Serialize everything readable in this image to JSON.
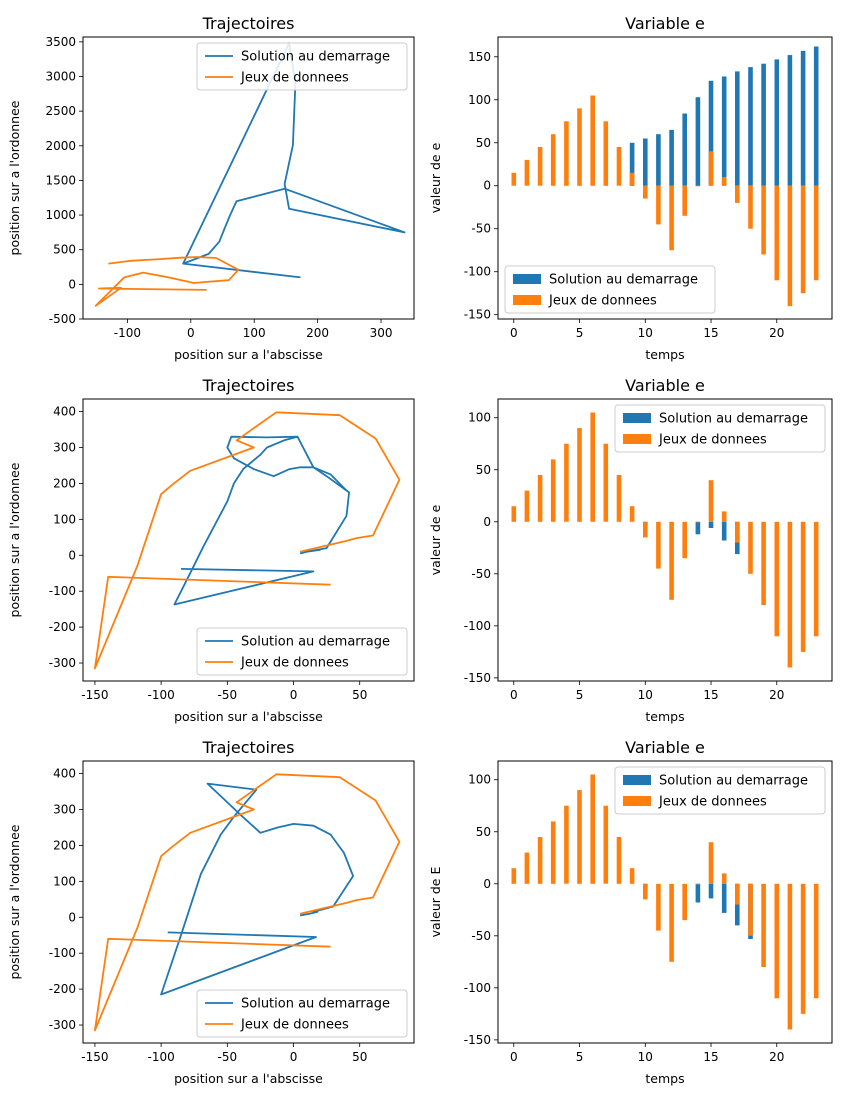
{
  "colors": {
    "blue": "#1f77b4",
    "orange": "#ff7f0e"
  },
  "chart_data": [
    {
      "type": "line",
      "title": "Trajectoires",
      "xlabel": "position sur a l'abscisse",
      "ylabel": "position sur a l'ordonnee",
      "xlim": [
        -170,
        352
      ],
      "ylim": [
        -500,
        3570
      ],
      "xticks": [
        -100,
        0,
        100,
        200,
        300
      ],
      "yticks": [
        -500,
        0,
        500,
        1000,
        1500,
        2000,
        2500,
        3000,
        3500
      ],
      "legend": "top-right",
      "series": [
        {
          "name": "Solution au demarrage",
          "color": "blue",
          "x": [
            173,
            -12,
            28,
            45,
            53,
            62,
            72,
            148,
            337,
            155,
            148,
            161,
            165,
            155,
            -12
          ],
          "y": [
            100,
            300,
            440,
            615,
            800,
            1000,
            1200,
            1380,
            750,
            1090,
            1450,
            2010,
            2900,
            3480,
            300
          ]
        },
        {
          "name": "Jeux de donnees",
          "color": "orange",
          "x": [
            -130,
            -95,
            -55,
            -15,
            10,
            40,
            75,
            60,
            30,
            5,
            -35,
            -75,
            -105,
            -150,
            -110,
            -145,
            25
          ],
          "y": [
            300,
            340,
            360,
            385,
            395,
            380,
            210,
            60,
            40,
            20,
            100,
            170,
            100,
            -310,
            -50,
            -60,
            -80
          ]
        }
      ]
    },
    {
      "type": "bar",
      "title": "Variable e",
      "xlabel": "temps",
      "ylabel": "valeur de e",
      "xlim": [
        -1.2,
        24.2
      ],
      "ylim": [
        -155,
        173
      ],
      "xticks": [
        0,
        5,
        10,
        15,
        20
      ],
      "yticks": [
        -150,
        -100,
        -50,
        0,
        50,
        100,
        150
      ],
      "legend": "bottom-left",
      "x": [
        0,
        1,
        2,
        3,
        4,
        5,
        6,
        7,
        8,
        9,
        10,
        11,
        12,
        13,
        14,
        15,
        16,
        17,
        18,
        19,
        20,
        21,
        22,
        23
      ],
      "series": [
        {
          "name": "Solution au demarrage",
          "color": "blue",
          "values": [
            null,
            null,
            null,
            null,
            null,
            null,
            null,
            null,
            null,
            50,
            55,
            60,
            65,
            84,
            103,
            122,
            127,
            133,
            138,
            142,
            147,
            152,
            157,
            162
          ]
        },
        {
          "name": "Jeux de donnees",
          "color": "orange",
          "values": [
            15,
            30,
            45,
            60,
            75,
            90,
            105,
            75,
            45,
            15,
            -15,
            -45,
            -75,
            -35,
            0,
            40,
            10,
            -20,
            -50,
            -80,
            -110,
            -140,
            -125,
            -110
          ]
        }
      ]
    },
    {
      "type": "line",
      "title": "Trajectoires",
      "xlabel": "position sur a l'abscisse",
      "ylabel": "position sur a l'ordonnee",
      "xlim": [
        -159,
        91
      ],
      "ylim": [
        -350,
        435
      ],
      "xticks": [
        -150,
        -100,
        -50,
        0,
        50
      ],
      "yticks": [
        -300,
        -200,
        -100,
        0,
        100,
        200,
        300,
        400
      ],
      "legend": "bottom-right",
      "series": [
        {
          "name": "Solution au demarrage",
          "color": "blue",
          "x": [
            -85,
            15,
            -90,
            -78,
            -68,
            -50,
            -45,
            -38,
            -25,
            -20,
            -7,
            3,
            15,
            25,
            42,
            40,
            25,
            10,
            20,
            10,
            5
          ],
          "y": [
            -38,
            -45,
            -137,
            -50,
            25,
            150,
            200,
            240,
            280,
            300,
            320,
            330,
            245,
            220,
            175,
            110,
            20,
            10,
            15,
            10,
            5
          ],
          "x_tail": [
            3,
            -20,
            -47,
            -50,
            -45,
            -30,
            -15,
            -3,
            5,
            15,
            28,
            40
          ],
          "y_tail": [
            330,
            328,
            330,
            300,
            270,
            240,
            220,
            240,
            245,
            245,
            225,
            180
          ]
        },
        {
          "name": "Jeux de donnees",
          "color": "orange",
          "x": [
            5,
            40,
            48,
            60,
            80,
            62,
            35,
            -13,
            -43,
            -30,
            -78,
            -92,
            -100,
            -118,
            -150,
            -140,
            28
          ],
          "y": [
            10,
            40,
            48,
            55,
            210,
            325,
            390,
            398,
            320,
            300,
            235,
            195,
            170,
            -30,
            -315,
            -60,
            -82
          ]
        }
      ]
    },
    {
      "type": "bar",
      "title": "Variable e",
      "xlabel": "temps",
      "ylabel": "valeur de e",
      "xlim": [
        -1.2,
        24.2
      ],
      "ylim": [
        -153,
        118
      ],
      "xticks": [
        0,
        5,
        10,
        15,
        20
      ],
      "yticks": [
        -150,
        -100,
        -50,
        0,
        50,
        100
      ],
      "legend": "top-right",
      "x": [
        0,
        1,
        2,
        3,
        4,
        5,
        6,
        7,
        8,
        9,
        10,
        11,
        12,
        13,
        14,
        15,
        16,
        17,
        18,
        19,
        20,
        21,
        22,
        23
      ],
      "series": [
        {
          "name": "Solution au demarrage",
          "color": "blue",
          "values": [
            null,
            null,
            null,
            null,
            null,
            null,
            null,
            null,
            null,
            null,
            -5,
            null,
            null,
            null,
            -12,
            -6,
            -18,
            -31,
            null,
            null,
            null,
            null,
            null,
            null
          ]
        },
        {
          "name": "Jeux de donnees",
          "color": "orange",
          "values": [
            15,
            30,
            45,
            60,
            75,
            90,
            105,
            75,
            45,
            15,
            -15,
            -45,
            -75,
            -35,
            0,
            40,
            10,
            -20,
            -50,
            -80,
            -110,
            -140,
            -125,
            -110
          ]
        }
      ]
    },
    {
      "type": "line",
      "title": "Trajectoires",
      "xlabel": "position sur a l'abscisse",
      "ylabel": "position sur a l'ordonnee",
      "xlim": [
        -159,
        91
      ],
      "ylim": [
        -350,
        435
      ],
      "xticks": [
        -150,
        -100,
        -50,
        0,
        50
      ],
      "yticks": [
        -300,
        -200,
        -100,
        0,
        100,
        200,
        300,
        400
      ],
      "legend": "bottom-right",
      "series": [
        {
          "name": "Solution au demarrage",
          "color": "blue",
          "x": [
            -95,
            17,
            -100,
            -85,
            -70,
            -55,
            -45,
            -28,
            -65,
            -40,
            -25,
            -12,
            0,
            15,
            28,
            38,
            45,
            30,
            15,
            18,
            12,
            5
          ],
          "y": [
            -42,
            -55,
            -215,
            -50,
            120,
            230,
            280,
            355,
            372,
            285,
            235,
            250,
            260,
            255,
            230,
            180,
            115,
            30,
            15,
            15,
            10,
            5
          ]
        },
        {
          "name": "Jeux de donnees",
          "color": "orange",
          "x": [
            5,
            40,
            48,
            60,
            80,
            62,
            35,
            -13,
            -43,
            -30,
            -78,
            -92,
            -100,
            -118,
            -150,
            -140,
            28
          ],
          "y": [
            10,
            40,
            48,
            55,
            210,
            325,
            390,
            398,
            320,
            300,
            235,
            195,
            170,
            -30,
            -315,
            -60,
            -82
          ]
        }
      ]
    },
    {
      "type": "bar",
      "title": "Variable e",
      "xlabel": "temps",
      "ylabel": "valeur de E",
      "xlim": [
        -1.2,
        24.2
      ],
      "ylim": [
        -153,
        118
      ],
      "xticks": [
        0,
        5,
        10,
        15,
        20
      ],
      "yticks": [
        -150,
        -100,
        -50,
        0,
        50,
        100
      ],
      "legend": "top-right",
      "x": [
        0,
        1,
        2,
        3,
        4,
        5,
        6,
        7,
        8,
        9,
        10,
        11,
        12,
        13,
        14,
        15,
        16,
        17,
        18,
        19,
        20,
        21,
        22,
        23
      ],
      "series": [
        {
          "name": "Solution au demarrage",
          "color": "blue",
          "values": [
            null,
            null,
            null,
            null,
            null,
            null,
            null,
            null,
            null,
            null,
            -5,
            null,
            null,
            null,
            -18,
            -14,
            -28,
            -40,
            -53,
            null,
            null,
            null,
            null,
            null
          ]
        },
        {
          "name": "Jeux de donnees",
          "color": "orange",
          "values": [
            15,
            30,
            45,
            60,
            75,
            90,
            105,
            75,
            45,
            15,
            -15,
            -45,
            -75,
            -35,
            0,
            40,
            10,
            -20,
            -50,
            -80,
            -110,
            -140,
            -125,
            -110
          ]
        }
      ]
    }
  ]
}
